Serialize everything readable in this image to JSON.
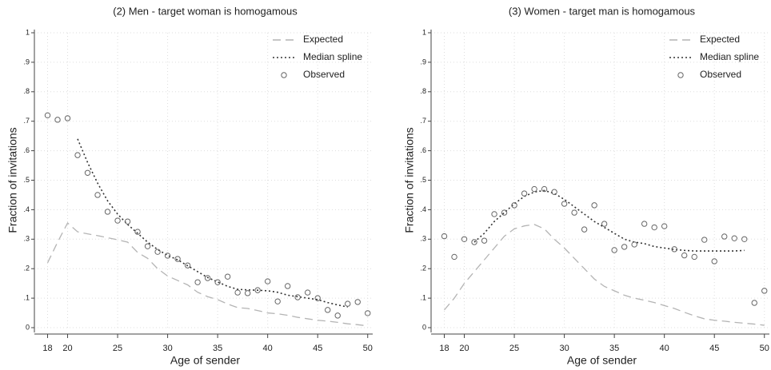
{
  "chart_data": [
    {
      "type": "line",
      "title": "(2) Men - target woman is homogamous",
      "x_label": "Age of sender",
      "y_label": "Fraction of invitations",
      "x": [
        18,
        19,
        20,
        21,
        22,
        23,
        24,
        25,
        26,
        27,
        28,
        29,
        30,
        31,
        32,
        33,
        34,
        35,
        36,
        37,
        38,
        39,
        40,
        41,
        42,
        43,
        44,
        45,
        46,
        47,
        48,
        49,
        50
      ],
      "series": [
        {
          "name": "Expected",
          "style": "dashed",
          "color": "#b4b4b4",
          "values": [
            0.22,
            0.29,
            0.355,
            0.325,
            0.318,
            0.312,
            0.305,
            0.298,
            0.29,
            0.255,
            0.235,
            0.2,
            0.175,
            0.16,
            0.145,
            0.12,
            0.105,
            0.095,
            0.08,
            0.068,
            0.065,
            0.058,
            0.05,
            0.047,
            0.042,
            0.035,
            0.03,
            0.025,
            0.022,
            0.018,
            0.013,
            0.01,
            0.006
          ]
        },
        {
          "name": "Median spline",
          "style": "dotted",
          "color": "#333333",
          "values": [
            null,
            null,
            null,
            0.64,
            0.56,
            0.49,
            0.43,
            0.385,
            0.35,
            0.32,
            0.29,
            0.265,
            0.245,
            0.23,
            0.21,
            0.19,
            0.17,
            0.155,
            0.14,
            0.13,
            0.128,
            0.127,
            0.125,
            0.12,
            0.11,
            0.105,
            0.1,
            0.095,
            0.085,
            0.077,
            0.07,
            null,
            null
          ]
        },
        {
          "name": "Observed",
          "style": "markers",
          "color": "#666666",
          "values": [
            0.72,
            0.705,
            0.71,
            0.585,
            0.525,
            0.45,
            0.393,
            0.363,
            0.36,
            0.325,
            0.276,
            0.257,
            0.244,
            0.233,
            0.211,
            0.154,
            0.168,
            0.154,
            0.173,
            0.119,
            0.117,
            0.127,
            0.157,
            0.089,
            0.141,
            0.103,
            0.119,
            0.1,
            0.06,
            0.041,
            0.081,
            0.087,
            0.049
          ]
        }
      ],
      "xlim": [
        17,
        50.5
      ],
      "xticks": [
        18,
        20,
        25,
        30,
        35,
        40,
        45,
        50
      ],
      "ylim": [
        0,
        1
      ],
      "yticks": [
        0,
        {
          "value": 0.1,
          "label": ".1"
        },
        {
          "value": 0.2,
          "label": ".2"
        },
        {
          "value": 0.3,
          "label": ".3"
        },
        {
          "value": 0.4,
          "label": ".4"
        },
        {
          "value": 0.5,
          "label": ".5"
        },
        {
          "value": 0.6,
          "label": ".6"
        },
        {
          "value": 0.7,
          "label": ".7"
        },
        {
          "value": 0.8,
          "label": ".8"
        },
        {
          "value": 0.9,
          "label": ".9"
        },
        1
      ],
      "grid": true,
      "legend": "top-right"
    },
    {
      "type": "line",
      "title": "(3) Women - target man is homogamous",
      "x_label": "Age of sender",
      "y_label": "Fraction of invitations",
      "x": [
        18,
        19,
        20,
        21,
        22,
        23,
        24,
        25,
        26,
        27,
        28,
        29,
        30,
        31,
        32,
        33,
        34,
        35,
        36,
        37,
        38,
        39,
        40,
        41,
        42,
        43,
        44,
        45,
        46,
        47,
        48,
        49,
        50
      ],
      "series": [
        {
          "name": "Expected",
          "style": "dashed",
          "color": "#b4b4b4",
          "values": [
            0.06,
            0.1,
            0.15,
            0.19,
            0.23,
            0.27,
            0.31,
            0.335,
            0.345,
            0.35,
            0.335,
            0.3,
            0.27,
            0.235,
            0.2,
            0.165,
            0.14,
            0.125,
            0.11,
            0.1,
            0.093,
            0.085,
            0.075,
            0.065,
            0.052,
            0.04,
            0.03,
            0.025,
            0.022,
            0.018,
            0.015,
            0.012,
            0.008
          ]
        },
        {
          "name": "Median spline",
          "style": "dotted",
          "color": "#333333",
          "values": [
            null,
            null,
            null,
            0.29,
            0.32,
            0.36,
            0.39,
            0.42,
            0.445,
            0.46,
            0.465,
            0.455,
            0.435,
            0.41,
            0.385,
            0.36,
            0.34,
            0.32,
            0.3,
            0.29,
            0.285,
            0.275,
            0.27,
            0.265,
            0.262,
            0.26,
            0.26,
            0.26,
            0.26,
            0.26,
            0.262,
            null,
            null
          ]
        },
        {
          "name": "Observed",
          "style": "markers",
          "color": "#666666",
          "values": [
            0.31,
            0.24,
            0.3,
            0.29,
            0.295,
            0.385,
            0.39,
            0.415,
            0.455,
            0.47,
            0.47,
            0.46,
            0.42,
            0.39,
            0.333,
            0.415,
            0.352,
            0.263,
            0.274,
            0.282,
            0.352,
            0.34,
            0.344,
            0.266,
            0.245,
            0.24,
            0.298,
            0.225,
            0.309,
            0.303,
            0.3,
            0.084,
            0.125
          ]
        }
      ],
      "xlim": [
        17,
        50.5
      ],
      "xticks": [
        18,
        20,
        25,
        30,
        35,
        40,
        45,
        50
      ],
      "ylim": [
        0,
        1
      ],
      "yticks": [
        0,
        {
          "value": 0.1,
          "label": ".1"
        },
        {
          "value": 0.2,
          "label": ".2"
        },
        {
          "value": 0.3,
          "label": ".3"
        },
        {
          "value": 0.4,
          "label": ".4"
        },
        {
          "value": 0.5,
          "label": ".5"
        },
        {
          "value": 0.6,
          "label": ".6"
        },
        {
          "value": 0.7,
          "label": ".7"
        },
        {
          "value": 0.8,
          "label": ".8"
        },
        {
          "value": 0.9,
          "label": ".9"
        },
        1
      ],
      "grid": true,
      "legend": "top-right"
    }
  ]
}
